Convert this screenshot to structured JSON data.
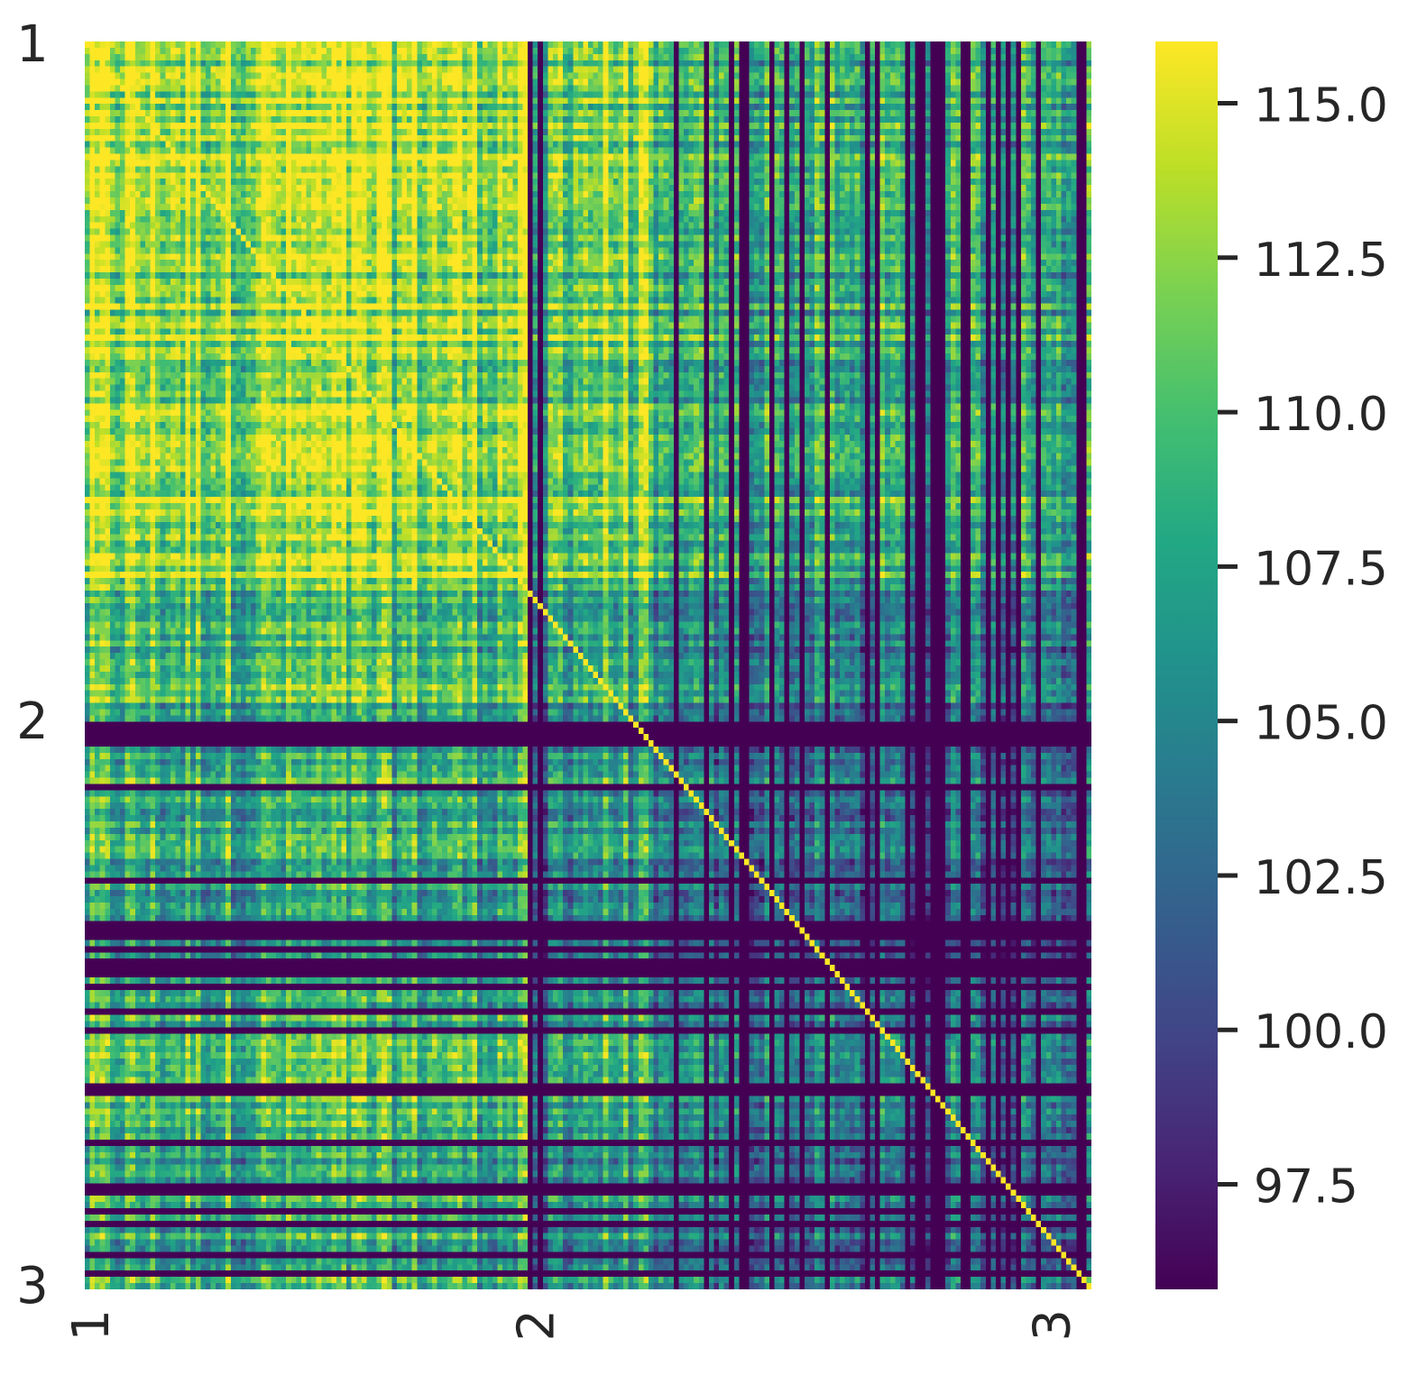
{
  "chart_data": {
    "type": "heatmap",
    "title": "",
    "xlabel": "",
    "ylabel": "",
    "grid": false,
    "colormap": "viridis",
    "matrix_size": 200,
    "diagonal_max": true,
    "row_tick_labels": [
      {
        "label": "1",
        "index": 0
      },
      {
        "label": "2",
        "index": 108
      },
      {
        "label": "3",
        "index": 198
      }
    ],
    "col_tick_labels": [
      {
        "label": "1",
        "index": 0
      },
      {
        "label": "2",
        "index": 88
      },
      {
        "label": "3",
        "index": 190
      }
    ],
    "colorbar": {
      "vmin": 95.8,
      "vmax": 116.0,
      "ticks": [
        97.5,
        100.0,
        102.5,
        105.0,
        107.5,
        110.0,
        112.5,
        115.0
      ],
      "tick_labels": [
        "97.5",
        "100.0",
        "102.5",
        "105.0",
        "107.5",
        "110.0",
        "112.5",
        "115.0"
      ]
    }
  }
}
